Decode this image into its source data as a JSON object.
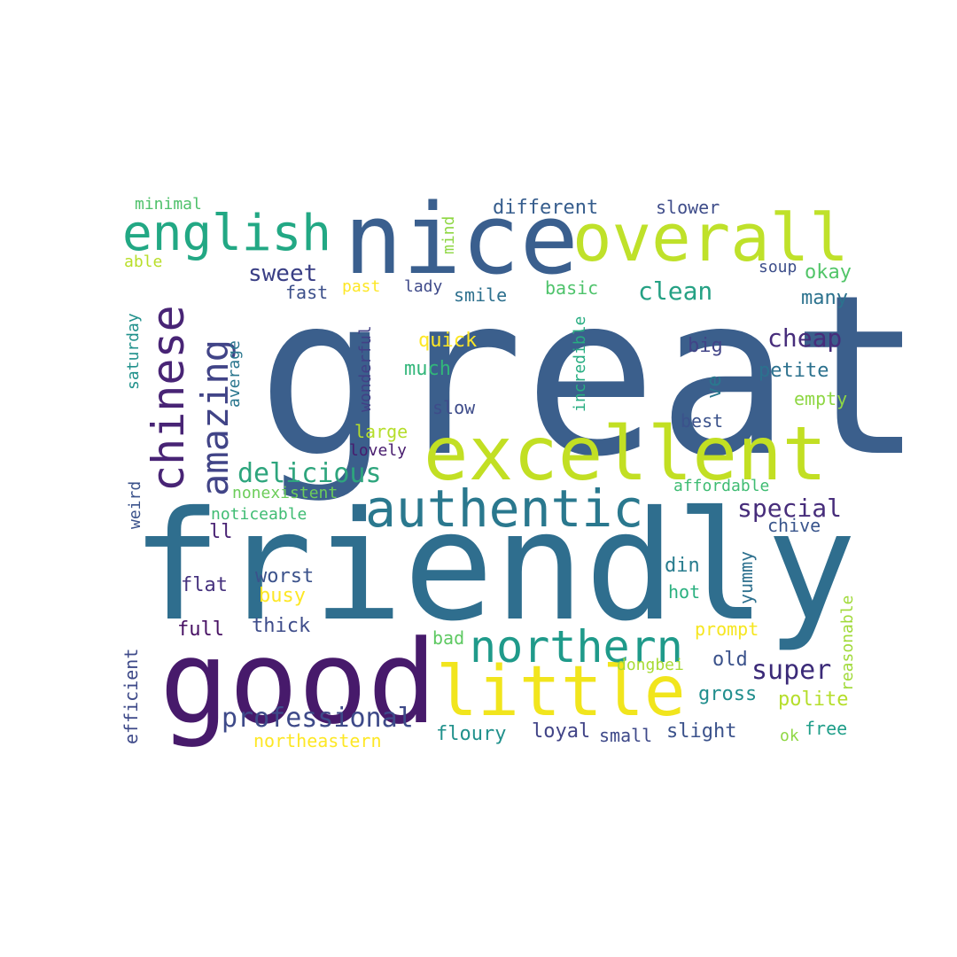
{
  "word_cloud": {
    "words": [
      {
        "text": "great",
        "color": "#3b5f8c",
        "rotation": "horizontal"
      },
      {
        "text": "friendly",
        "color": "#2f6e8e",
        "rotation": "horizontal"
      },
      {
        "text": "nice",
        "color": "#3a5f8e",
        "rotation": "horizontal"
      },
      {
        "text": "good",
        "color": "#471a6b",
        "rotation": "horizontal"
      },
      {
        "text": "excellent",
        "color": "#c2df23",
        "rotation": "horizontal"
      },
      {
        "text": "overall",
        "color": "#bfe12a",
        "rotation": "horizontal"
      },
      {
        "text": "little",
        "color": "#f1e51d",
        "rotation": "horizontal"
      },
      {
        "text": "authentic",
        "color": "#2a788e",
        "rotation": "horizontal"
      },
      {
        "text": "english",
        "color": "#22a884",
        "rotation": "horizontal"
      },
      {
        "text": "northern",
        "color": "#1f9a8a",
        "rotation": "horizontal"
      },
      {
        "text": "chinese",
        "color": "#482475",
        "rotation": "vertical"
      },
      {
        "text": "amazing",
        "color": "#414487",
        "rotation": "vertical"
      },
      {
        "text": "professional",
        "color": "#3e4a89",
        "rotation": "horizontal"
      },
      {
        "text": "delicious",
        "color": "#2ea57d",
        "rotation": "horizontal"
      },
      {
        "text": "special",
        "color": "#472d7b",
        "rotation": "horizontal"
      },
      {
        "text": "super",
        "color": "#3b2a78",
        "rotation": "horizontal"
      },
      {
        "text": "cheap",
        "color": "#472d7b",
        "rotation": "horizontal"
      },
      {
        "text": "clean",
        "color": "#25a184",
        "rotation": "horizontal"
      },
      {
        "text": "sweet",
        "color": "#3a3f85",
        "rotation": "horizontal"
      },
      {
        "text": "different",
        "color": "#365d8d",
        "rotation": "horizontal"
      },
      {
        "text": "slower",
        "color": "#3f4d8a",
        "rotation": "horizontal"
      },
      {
        "text": "minimal",
        "color": "#4fc16b",
        "rotation": "horizontal"
      },
      {
        "text": "able",
        "color": "#b8de29",
        "rotation": "horizontal"
      },
      {
        "text": "mind",
        "color": "#8fd744",
        "rotation": "vertical"
      },
      {
        "text": "soup",
        "color": "#3d4e8a",
        "rotation": "horizontal"
      },
      {
        "text": "okay",
        "color": "#52c569",
        "rotation": "horizontal"
      },
      {
        "text": "many",
        "color": "#2c728e",
        "rotation": "horizontal"
      },
      {
        "text": "fast",
        "color": "#3c4f8a",
        "rotation": "horizontal"
      },
      {
        "text": "past",
        "color": "#fde725",
        "rotation": "horizontal"
      },
      {
        "text": "lady",
        "color": "#3e4989",
        "rotation": "horizontal"
      },
      {
        "text": "smile",
        "color": "#2d708e",
        "rotation": "horizontal"
      },
      {
        "text": "basic",
        "color": "#4ec36b",
        "rotation": "horizontal"
      },
      {
        "text": "saturday",
        "color": "#21918c",
        "rotation": "vertical"
      },
      {
        "text": "average",
        "color": "#2a768e",
        "rotation": "vertical"
      },
      {
        "text": "wonderful",
        "color": "#424086",
        "rotation": "vertical"
      },
      {
        "text": "quick",
        "color": "#fde725",
        "rotation": "horizontal"
      },
      {
        "text": "much",
        "color": "#32b67a",
        "rotation": "horizontal"
      },
      {
        "text": "incredible",
        "color": "#27ad81",
        "rotation": "vertical"
      },
      {
        "text": "big",
        "color": "#414487",
        "rotation": "horizontal"
      },
      {
        "text": "petite",
        "color": "#2c718e",
        "rotation": "horizontal"
      },
      {
        "text": "ve",
        "color": "#2a788e",
        "rotation": "vertical"
      },
      {
        "text": "empty",
        "color": "#8fd744",
        "rotation": "horizontal"
      },
      {
        "text": "slow",
        "color": "#3e4c8a",
        "rotation": "horizontal"
      },
      {
        "text": "best",
        "color": "#3b528b",
        "rotation": "horizontal"
      },
      {
        "text": "large",
        "color": "#b5de2b",
        "rotation": "horizontal"
      },
      {
        "text": "lovely",
        "color": "#481c6e",
        "rotation": "horizontal"
      },
      {
        "text": "nonexistent",
        "color": "#6ccd5a",
        "rotation": "horizontal"
      },
      {
        "text": "affordable",
        "color": "#3fbc73",
        "rotation": "horizontal"
      },
      {
        "text": "weird",
        "color": "#3b528b",
        "rotation": "vertical"
      },
      {
        "text": "noticeable",
        "color": "#3fbc73",
        "rotation": "horizontal"
      },
      {
        "text": "chive",
        "color": "#39558c",
        "rotation": "horizontal"
      },
      {
        "text": "ll",
        "color": "#482173",
        "rotation": "horizontal"
      },
      {
        "text": "worst",
        "color": "#3b528b",
        "rotation": "horizontal"
      },
      {
        "text": "din",
        "color": "#287c8e",
        "rotation": "horizontal"
      },
      {
        "text": "yummy",
        "color": "#2d708e",
        "rotation": "vertical"
      },
      {
        "text": "flat",
        "color": "#46327e",
        "rotation": "horizontal"
      },
      {
        "text": "busy",
        "color": "#fde725",
        "rotation": "horizontal"
      },
      {
        "text": "hot",
        "color": "#2ab07f",
        "rotation": "horizontal"
      },
      {
        "text": "reasonable",
        "color": "#a0da39",
        "rotation": "vertical"
      },
      {
        "text": "full",
        "color": "#471063",
        "rotation": "horizontal"
      },
      {
        "text": "thick",
        "color": "#3e4c8a",
        "rotation": "horizontal"
      },
      {
        "text": "prompt",
        "color": "#f6e620",
        "rotation": "horizontal"
      },
      {
        "text": "bad",
        "color": "#5ec962",
        "rotation": "horizontal"
      },
      {
        "text": "efficient",
        "color": "#3e4a89",
        "rotation": "vertical"
      },
      {
        "text": "old",
        "color": "#3b528b",
        "rotation": "horizontal"
      },
      {
        "text": "dongbei",
        "color": "#a8db34",
        "rotation": "horizontal"
      },
      {
        "text": "gross",
        "color": "#218e8d",
        "rotation": "horizontal"
      },
      {
        "text": "polite",
        "color": "#b5de2b",
        "rotation": "horizontal"
      },
      {
        "text": "northeastern",
        "color": "#fde725",
        "rotation": "horizontal"
      },
      {
        "text": "floury",
        "color": "#21918c",
        "rotation": "horizontal"
      },
      {
        "text": "loyal",
        "color": "#414487",
        "rotation": "horizontal"
      },
      {
        "text": "small",
        "color": "#3e4989",
        "rotation": "horizontal"
      },
      {
        "text": "slight",
        "color": "#3b528b",
        "rotation": "horizontal"
      },
      {
        "text": "free",
        "color": "#1f9e89",
        "rotation": "horizontal"
      },
      {
        "text": "ok",
        "color": "#8fd744",
        "rotation": "horizontal"
      }
    ]
  }
}
